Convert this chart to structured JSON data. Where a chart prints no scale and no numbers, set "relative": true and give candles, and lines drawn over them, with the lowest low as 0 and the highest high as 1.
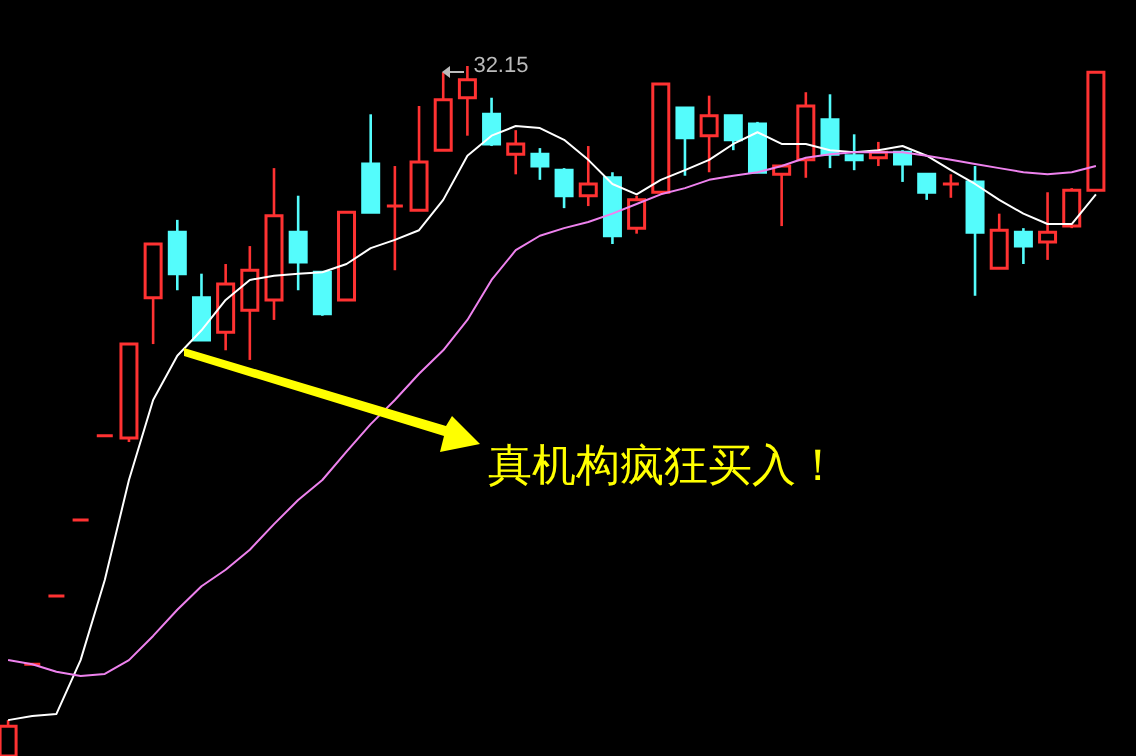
{
  "chart_data": {
    "type": "candlestick",
    "relative": true,
    "categories": [
      null,
      null,
      null,
      null,
      null,
      null,
      null,
      null,
      null,
      null,
      null,
      null,
      null,
      null,
      null,
      null,
      null,
      null,
      null,
      null,
      null,
      null,
      null,
      null,
      null,
      null,
      null,
      null,
      null,
      null,
      null,
      null,
      null,
      null,
      null,
      null,
      null,
      null,
      null,
      null,
      null,
      null,
      null,
      null,
      null,
      null
    ],
    "ohlc": [
      [
        0,
        0.052,
        0,
        0.043
      ],
      [
        0.133,
        0.133,
        0.133,
        0.133
      ],
      [
        0.232,
        0.232,
        0.232,
        0.232
      ],
      [
        0.342,
        0.342,
        0.342,
        0.342
      ],
      [
        0.464,
        0.464,
        0.464,
        0.464
      ],
      [
        0.461,
        0.597,
        0.455,
        0.597
      ],
      [
        0.664,
        0.742,
        0.597,
        0.742
      ],
      [
        0.759,
        0.777,
        0.675,
        0.699
      ],
      [
        0.664,
        0.699,
        0.603,
        0.603
      ],
      [
        0.614,
        0.713,
        0.588,
        0.684
      ],
      [
        0.646,
        0.739,
        0.574,
        0.704
      ],
      [
        0.661,
        0.852,
        0.632,
        0.783
      ],
      [
        0.759,
        0.812,
        0.675,
        0.716
      ],
      [
        0.701,
        0.701,
        0.638,
        0.641
      ],
      [
        0.661,
        0.788,
        0.661,
        0.788
      ],
      [
        0.858,
        0.93,
        0.788,
        0.788
      ],
      [
        0.797,
        0.855,
        0.704,
        0.797
      ],
      [
        0.791,
        0.942,
        0.791,
        0.861
      ],
      [
        0.878,
        0.991,
        0.878,
        0.951
      ],
      [
        0.954,
        1,
        0.899,
        0.98
      ],
      [
        0.93,
        0.954,
        0.884,
        0.887
      ],
      [
        0.872,
        0.907,
        0.843,
        0.887
      ],
      [
        0.872,
        0.881,
        0.835,
        0.855
      ],
      [
        0.849,
        0.852,
        0.794,
        0.812
      ],
      [
        0.812,
        0.884,
        0.797,
        0.829
      ],
      [
        0.838,
        0.846,
        0.742,
        0.754
      ],
      [
        0.765,
        0.812,
        0.757,
        0.806
      ],
      [
        0.817,
        0.974,
        0.817,
        0.974
      ],
      [
        0.939,
        0.939,
        0.841,
        0.896
      ],
      [
        0.899,
        0.957,
        0.846,
        0.928
      ],
      [
        0.928,
        0.928,
        0.878,
        0.893
      ],
      [
        0.916,
        0.919,
        0.846,
        0.846
      ],
      [
        0.843,
        0.855,
        0.768,
        0.855
      ],
      [
        0.864,
        0.962,
        0.838,
        0.942
      ],
      [
        0.922,
        0.959,
        0.852,
        0.872
      ],
      [
        0.87,
        0.901,
        0.849,
        0.864
      ],
      [
        0.867,
        0.89,
        0.855,
        0.875
      ],
      [
        0.875,
        0.878,
        0.832,
        0.858
      ],
      [
        0.843,
        0.843,
        0.806,
        0.817
      ],
      [
        0.829,
        0.843,
        0.809,
        0.829
      ],
      [
        0.832,
        0.855,
        0.667,
        0.759
      ],
      [
        0.707,
        0.786,
        0.707,
        0.762
      ],
      [
        0.759,
        0.765,
        0.713,
        0.739
      ],
      [
        0.745,
        0.817,
        0.719,
        0.759
      ],
      [
        0.768,
        0.823,
        0.765,
        0.82
      ],
      [
        0.82,
        0.991,
        0.82,
        0.991
      ]
    ],
    "colors": [
      "#ff3232",
      "#ff3232",
      "#ff3232",
      "#ff3232",
      "#ff3232",
      "#ff3232",
      "#ff3232",
      "#54fcfc",
      "#54fcfc",
      "#ff3232",
      "#ff3232",
      "#ff3232",
      "#54fcfc",
      "#54fcfc",
      "#ff3232",
      "#54fcfc",
      "#ff3232",
      "#ff3232",
      "#ff3232",
      "#ff3232",
      "#54fcfc",
      "#ff3232",
      "#54fcfc",
      "#54fcfc",
      "#ff3232",
      "#54fcfc",
      "#ff3232",
      "#ff3232",
      "#54fcfc",
      "#ff3232",
      "#54fcfc",
      "#54fcfc",
      "#ff3232",
      "#ff3232",
      "#54fcfc",
      "#54fcfc",
      "#ff3232",
      "#54fcfc",
      "#54fcfc",
      "#ff3232",
      "#54fcfc",
      "#ff3232",
      "#54fcfc",
      "#ff3232",
      "#ff3232",
      "#ff3232"
    ],
    "series": [
      {
        "type": "line",
        "color": "#ffffff",
        "values": [
          0.052,
          0.058,
          0.061,
          0.139,
          0.255,
          0.4,
          0.516,
          0.58,
          0.617,
          0.661,
          0.69,
          0.696,
          0.699,
          0.701,
          0.713,
          0.736,
          0.748,
          0.762,
          0.806,
          0.87,
          0.899,
          0.913,
          0.91,
          0.893,
          0.864,
          0.829,
          0.814,
          0.835,
          0.849,
          0.864,
          0.887,
          0.904,
          0.887,
          0.887,
          0.878,
          0.875,
          0.878,
          0.884,
          0.87,
          0.849,
          0.829,
          0.806,
          0.786,
          0.771,
          0.771,
          0.814
        ]
      },
      {
        "type": "line",
        "color": "#ee82ee",
        "values": [
          0.139,
          0.133,
          0.122,
          0.116,
          0.119,
          0.139,
          0.174,
          0.212,
          0.246,
          0.27,
          0.299,
          0.336,
          0.371,
          0.4,
          0.441,
          0.481,
          0.516,
          0.554,
          0.588,
          0.632,
          0.69,
          0.733,
          0.754,
          0.765,
          0.774,
          0.786,
          0.8,
          0.814,
          0.823,
          0.835,
          0.841,
          0.846,
          0.855,
          0.867,
          0.872,
          0.875,
          0.875,
          0.875,
          0.87,
          0.864,
          0.858,
          0.852,
          0.846,
          0.843,
          0.846,
          0.855
        ]
      }
    ],
    "annotations": [
      "真机构疯狂买入！",
      "32.15"
    ]
  }
}
